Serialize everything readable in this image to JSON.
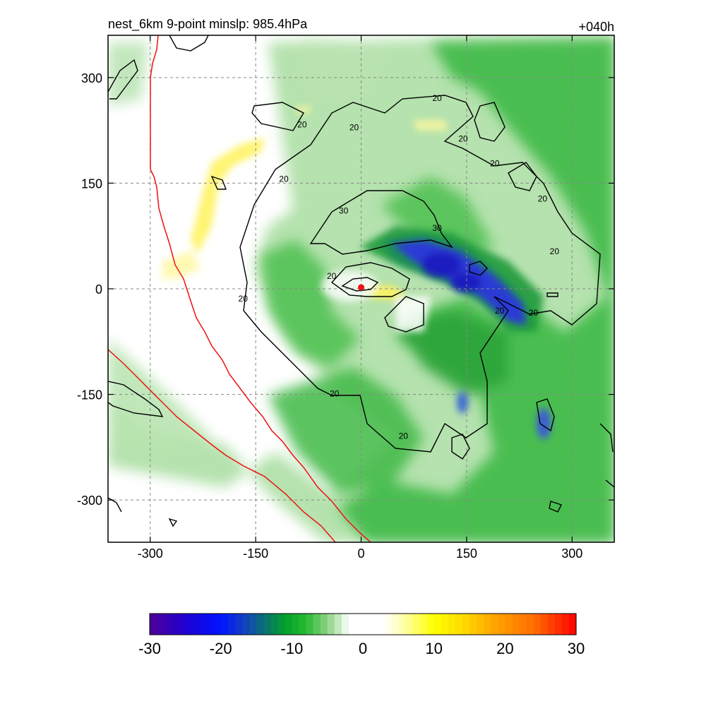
{
  "title_left": "nest_6km  9-point minslp: 985.4hPa",
  "title_right": "+040h",
  "chart_data": {
    "type": "heatmap",
    "title": "nest_6km  9-point minslp: 985.4hPa",
    "forecast_hour": "+040h",
    "xlim": [
      -360,
      360
    ],
    "ylim": [
      -360,
      360
    ],
    "x_ticks": [
      -300,
      -150,
      0,
      150,
      300
    ],
    "y_ticks": [
      -300,
      -150,
      0,
      150,
      300
    ],
    "x_tick_labels": [
      "-300",
      "-150",
      "0",
      "150",
      "300"
    ],
    "y_tick_labels": [
      "-300",
      "-150",
      "0",
      "150",
      "300"
    ],
    "grid": true,
    "colorbar": {
      "range": [
        -30,
        30
      ],
      "ticks": [
        -30,
        -20,
        -10,
        0,
        10,
        20,
        30
      ],
      "tick_labels": [
        "-30",
        "-20",
        "-10",
        "0",
        "10",
        "20",
        "30"
      ],
      "placement": "bottom"
    },
    "contour_levels": [
      20,
      30
    ],
    "contour_labels": [
      {
        "text": "20",
        "x": -84,
        "y": 232
      },
      {
        "text": "20",
        "x": -10,
        "y": 228
      },
      {
        "text": "20",
        "x": 108,
        "y": 270
      },
      {
        "text": "20",
        "x": 145,
        "y": 212
      },
      {
        "text": "20",
        "x": 190,
        "y": 177
      },
      {
        "text": "20",
        "x": 258,
        "y": 127
      },
      {
        "text": "20",
        "x": 275,
        "y": 52
      },
      {
        "text": "20",
        "x": -110,
        "y": 155
      },
      {
        "text": "30",
        "x": -25,
        "y": 110
      },
      {
        "text": "30",
        "x": 108,
        "y": 85
      },
      {
        "text": "20",
        "x": -42,
        "y": 17
      },
      {
        "text": "20",
        "x": -168,
        "y": -15
      },
      {
        "text": "20",
        "x": 197,
        "y": -32
      },
      {
        "text": "20",
        "x": 245,
        "y": -35
      },
      {
        "text": "20",
        "x": -38,
        "y": -150
      },
      {
        "text": "20",
        "x": 60,
        "y": -210
      }
    ],
    "storm_center": {
      "x": 0,
      "y": 2
    }
  }
}
